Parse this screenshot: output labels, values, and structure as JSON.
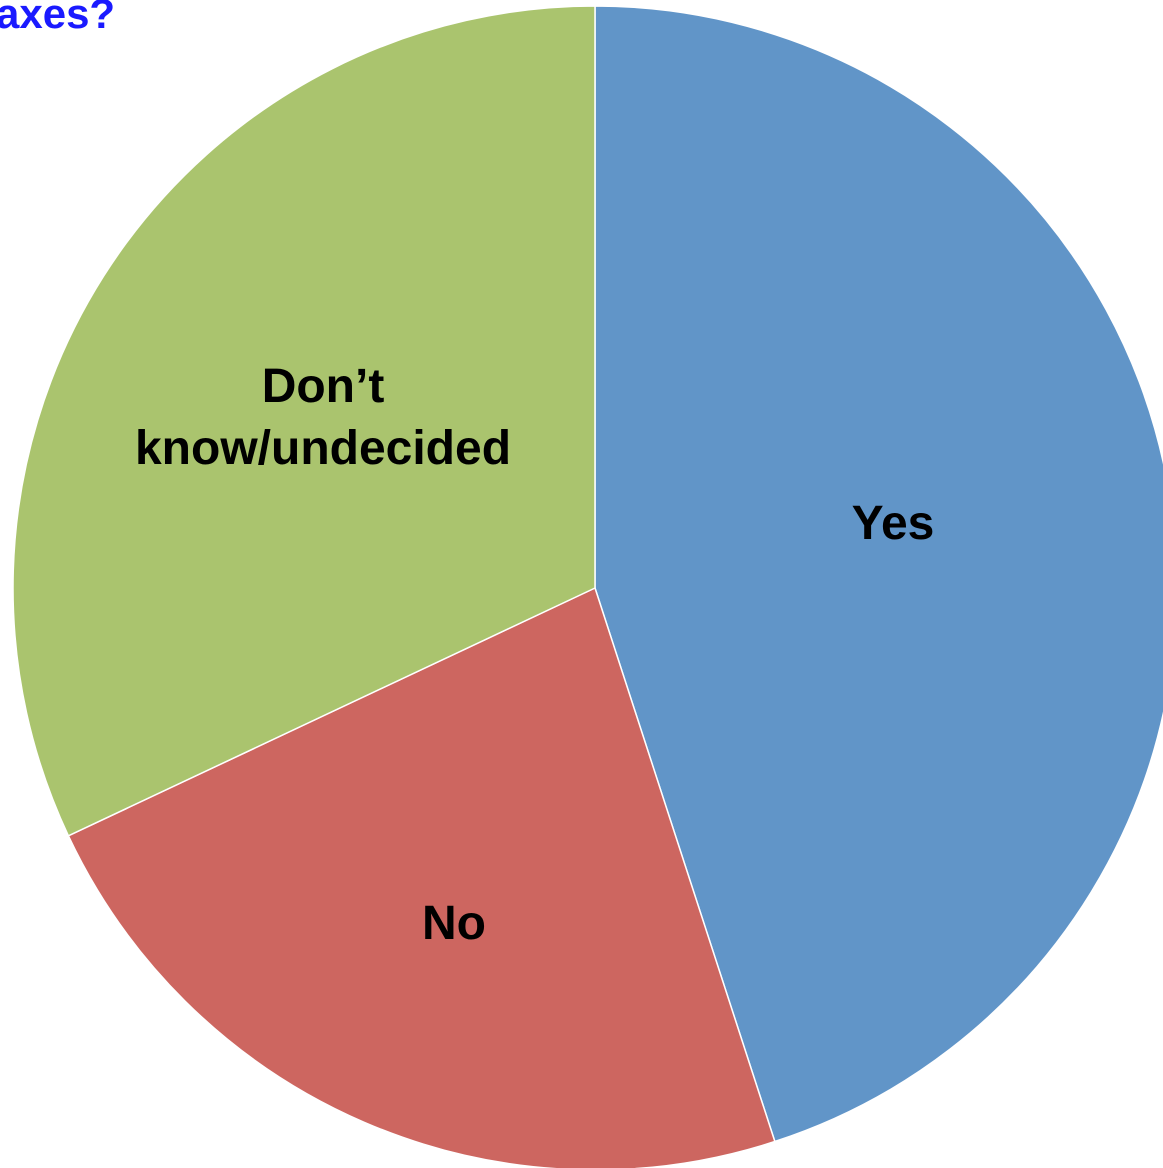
{
  "chart_data": {
    "type": "pie",
    "title": "axes?",
    "start_angle_deg": 0,
    "direction": "clockwise",
    "slices": [
      {
        "label": "Yes",
        "label_lines": [
          "Yes"
        ],
        "value": 45,
        "color": "#6195c8"
      },
      {
        "label": "No",
        "label_lines": [
          "No"
        ],
        "value": 23,
        "color": "#cd6660"
      },
      {
        "label": "Don’t know/undecided",
        "label_lines": [
          "Don’t",
          "know/undecided"
        ],
        "value": 32,
        "color": "#aac46e"
      }
    ]
  }
}
